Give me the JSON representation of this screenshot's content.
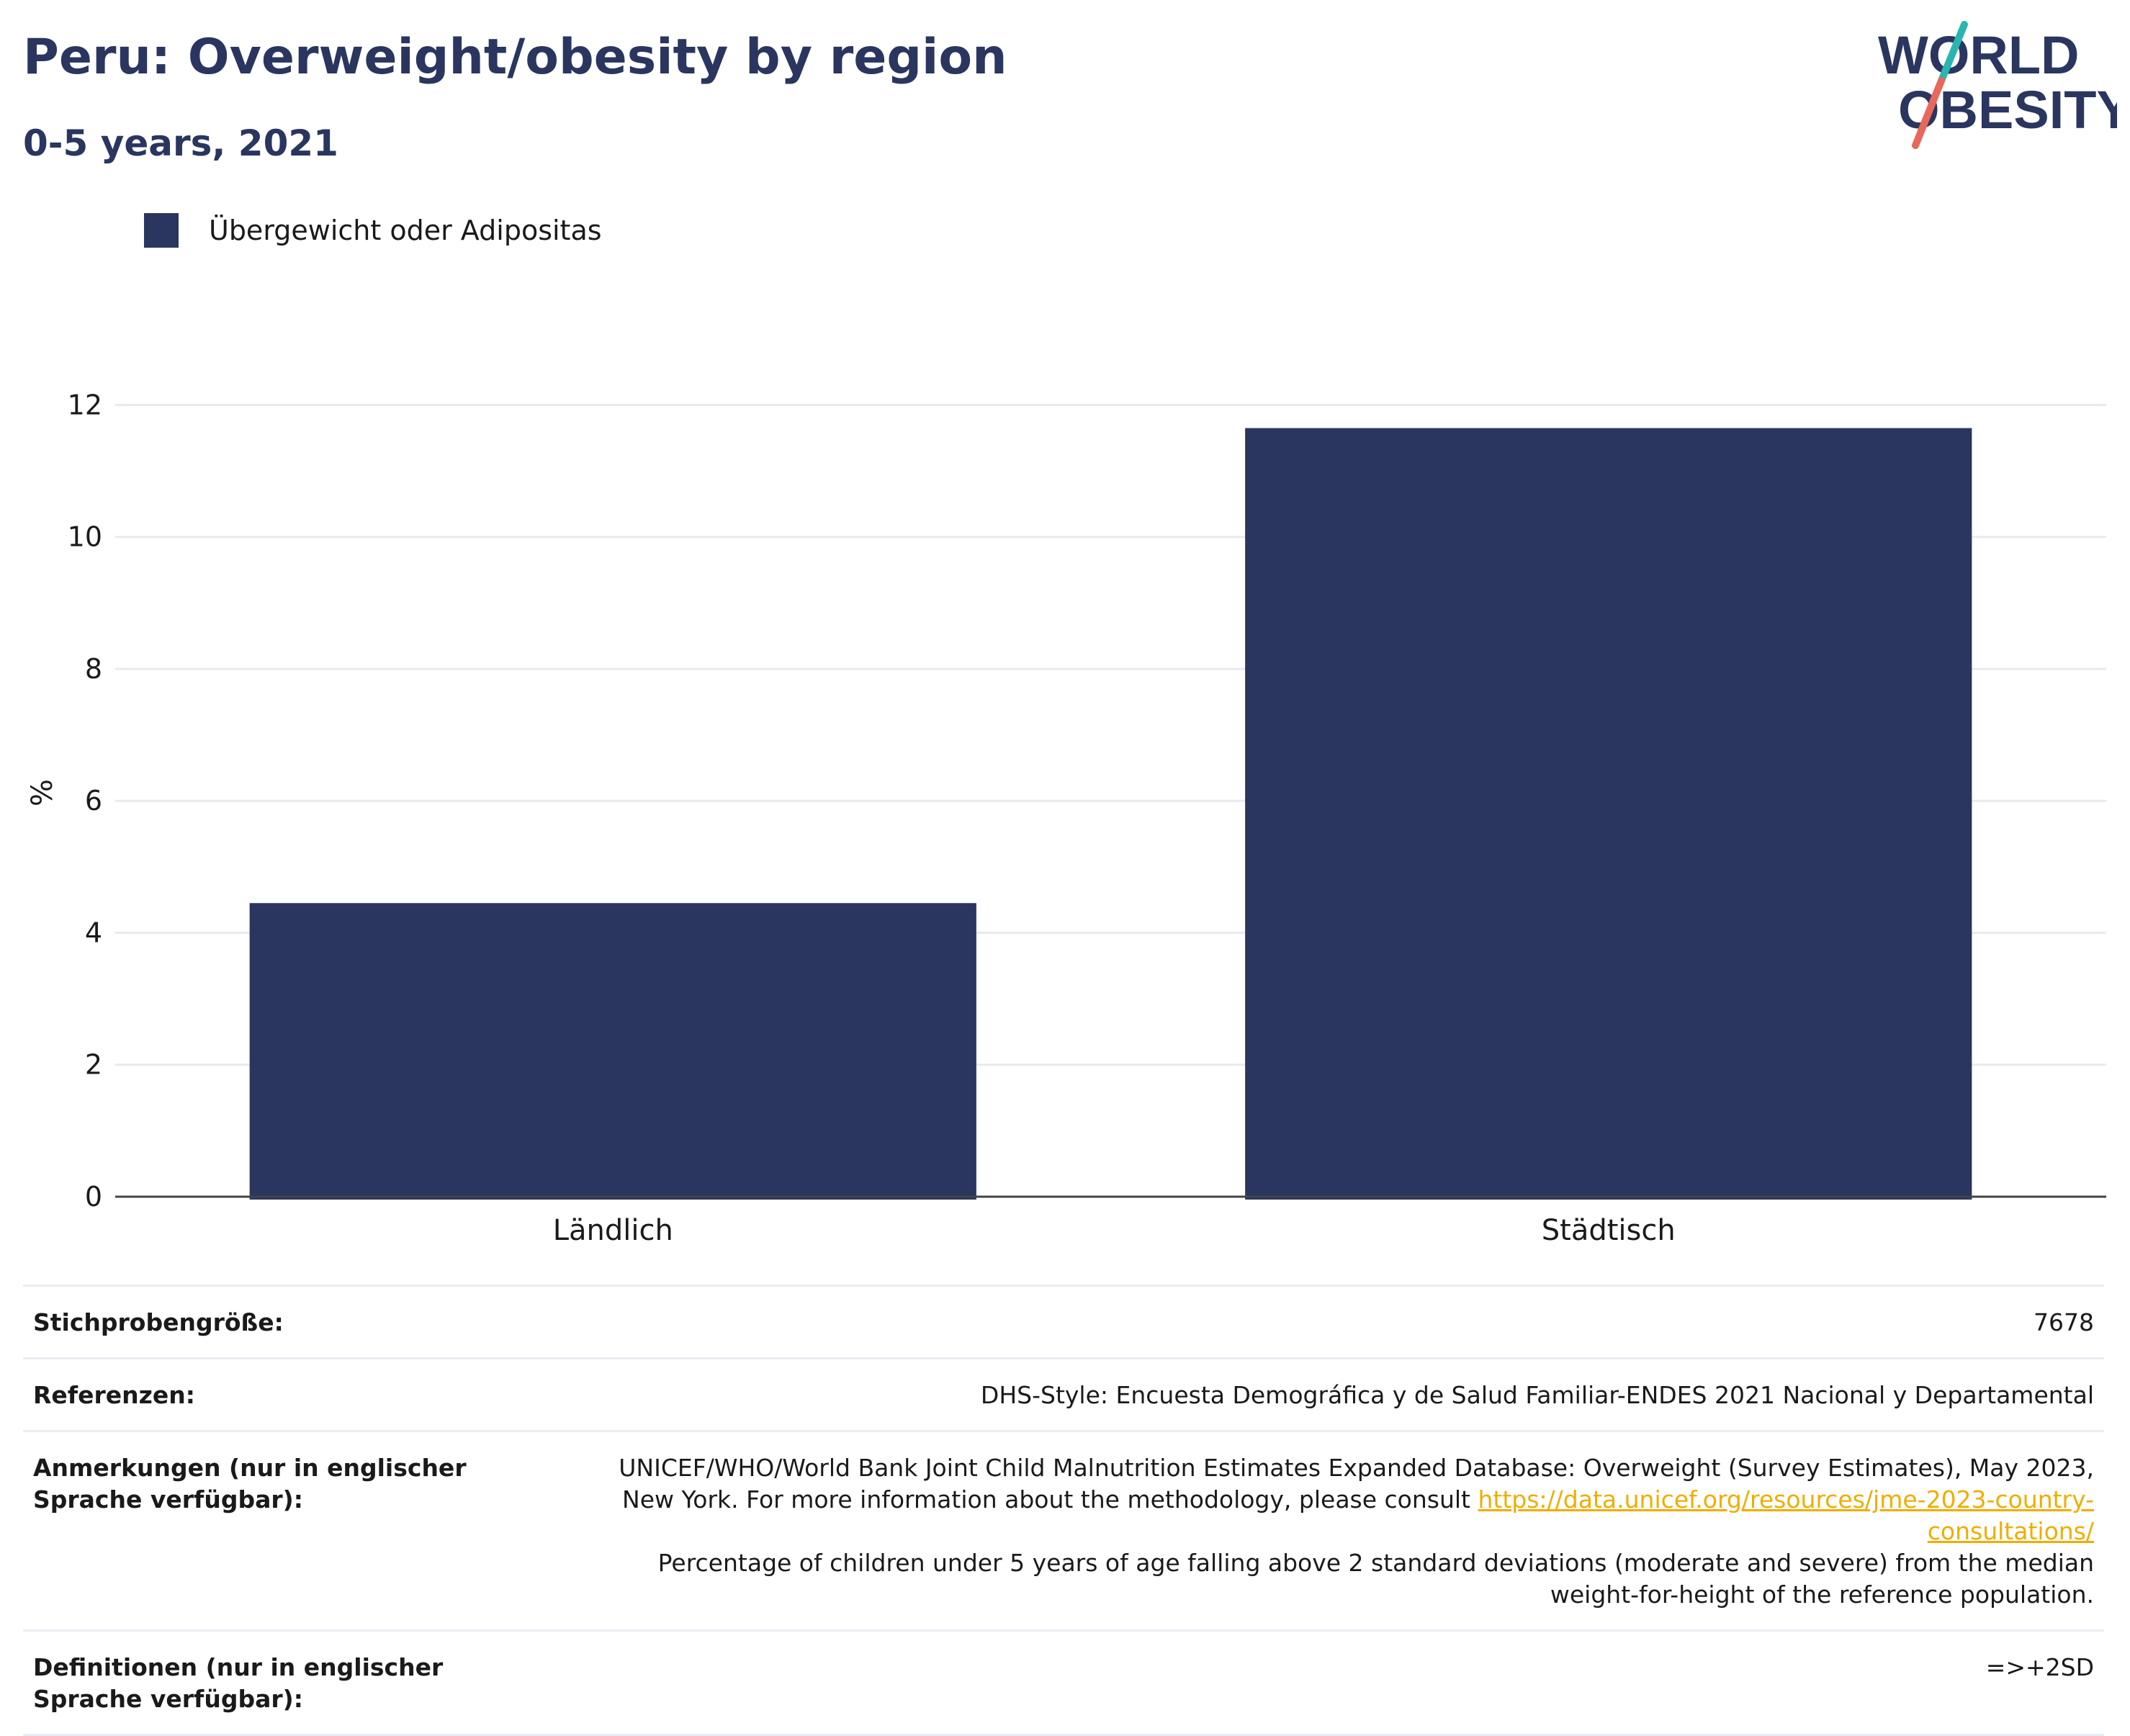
{
  "header": {
    "title": "Peru: Overweight/obesity by region",
    "subtitle": "0-5 years, 2021"
  },
  "logo": {
    "line1": "WORLD",
    "line2": "OBESITY",
    "colors": {
      "text": "#2a365f",
      "slash_top": "#2bb5b0",
      "slash_bottom": "#e8685a"
    }
  },
  "legend": {
    "label": "Übergewicht oder Adipositas",
    "color": "#2a365f"
  },
  "chart_data": {
    "type": "bar",
    "categories": [
      "Ländlich",
      "Städtisch"
    ],
    "series": [
      {
        "name": "Übergewicht oder Adipositas",
        "values": [
          4.45,
          11.65
        ],
        "color": "#2a365f"
      }
    ],
    "ylabel": "%",
    "xlabel": "",
    "ylim": [
      0,
      12.9
    ],
    "yticks": [
      0,
      2,
      4,
      6,
      8,
      10,
      12
    ],
    "grid": true
  },
  "info": {
    "sample_size": {
      "label": "Stichprobengröße:",
      "value": "7678"
    },
    "references": {
      "label": "Referenzen:",
      "value": "DHS-Style: Encuesta Demográfica y de Salud Familiar-ENDES 2021 Nacional y Departamental"
    },
    "notes": {
      "label": "Anmerkungen (nur in englischer Sprache verfügbar):",
      "text1": "UNICEF/WHO/World Bank Joint Child Malnutrition Estimates Expanded Database: Overweight (Survey Estimates), May 2023, New York. For more information about the methodology, please consult",
      "link": "https://data.unicef.org/resources/jme-2023-country-consultations/",
      "text2": "Percentage of children under 5 years of age falling above 2 standard deviations (moderate and severe) from the median weight-for-height of the reference population."
    },
    "definitions": {
      "label": "Definitionen (nur in englischer Sprache verfügbar):",
      "value": "=>+2SD"
    }
  }
}
